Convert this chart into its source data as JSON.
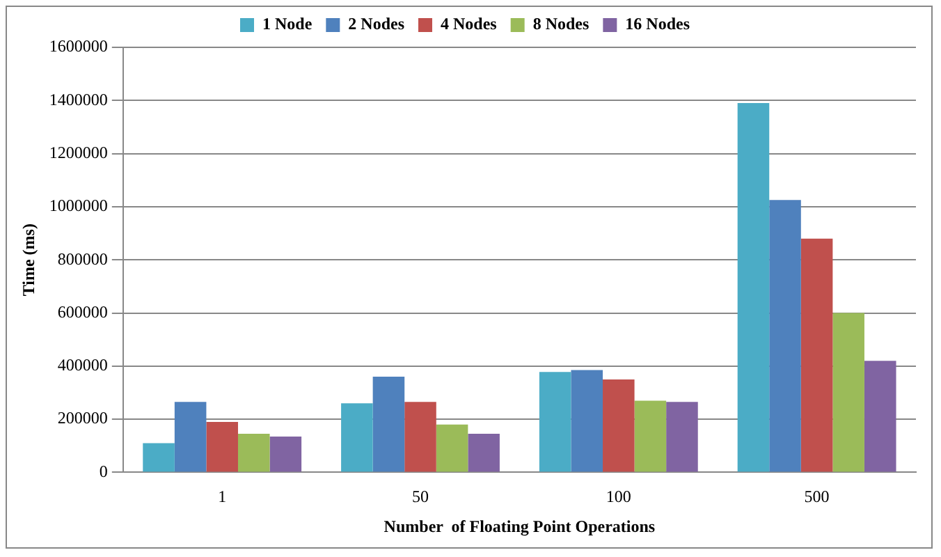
{
  "chart_data": {
    "type": "bar",
    "xlabel": "Number  of Floating Point Operations",
    "ylabel": "Time (ms)",
    "categories": [
      "1",
      "50",
      "100",
      "500"
    ],
    "series": [
      {
        "name": "1 Node",
        "color": "#4bacc6",
        "values": [
          110000,
          260000,
          378000,
          1390000
        ]
      },
      {
        "name": "2 Nodes",
        "color": "#4f81bd",
        "values": [
          265000,
          360000,
          385000,
          1025000
        ]
      },
      {
        "name": "4 Nodes",
        "color": "#c0504d",
        "values": [
          190000,
          265000,
          350000,
          880000
        ]
      },
      {
        "name": "8 Nodes",
        "color": "#9bbb59",
        "values": [
          145000,
          180000,
          270000,
          600000
        ]
      },
      {
        "name": "16 Nodes",
        "color": "#8064a2",
        "values": [
          135000,
          145000,
          265000,
          420000
        ]
      }
    ],
    "ylim": [
      0,
      1600000
    ],
    "yticks": [
      0,
      200000,
      400000,
      600000,
      800000,
      1000000,
      1200000,
      1400000,
      1600000
    ],
    "grid": "y",
    "legend": "top"
  }
}
